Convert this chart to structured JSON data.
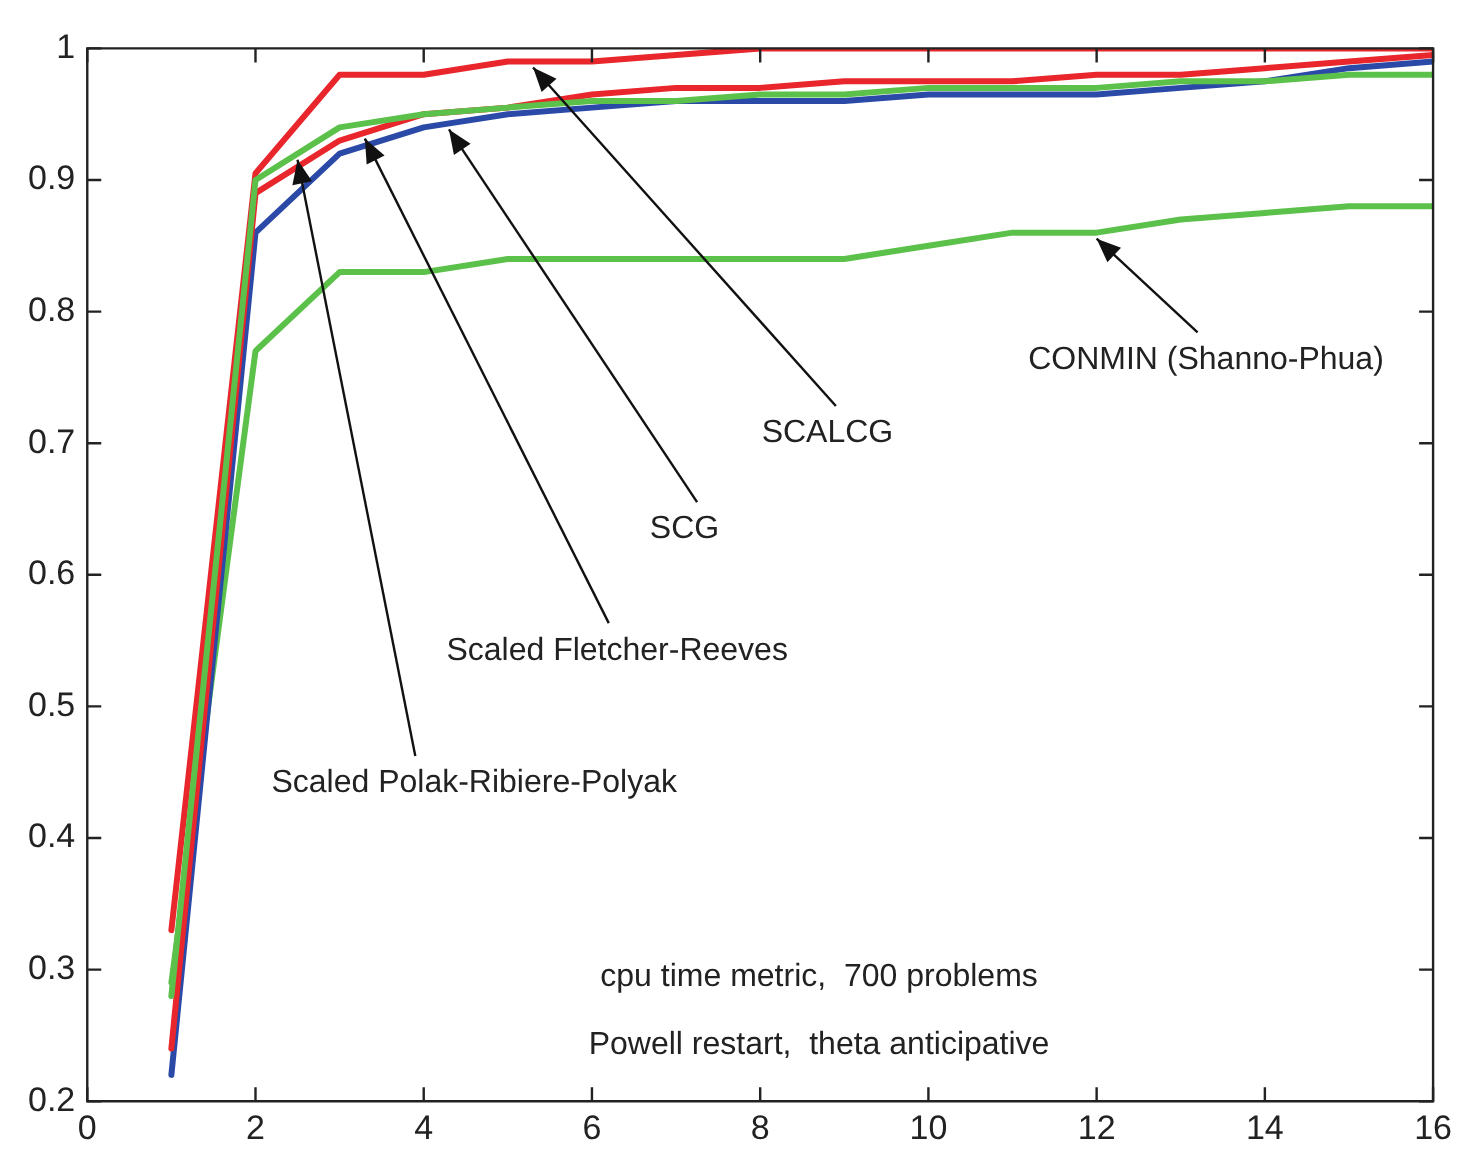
{
  "chart_data": {
    "type": "line",
    "x": [
      1,
      2,
      3,
      4,
      5,
      6,
      7,
      8,
      9,
      10,
      11,
      12,
      13,
      14,
      15,
      16
    ],
    "series": [
      {
        "color": "#5cc14a",
        "values": [
          0.28,
          0.9,
          0.94,
          0.95,
          0.955,
          0.96,
          0.96,
          0.965,
          0.965,
          0.97,
          0.97,
          0.97,
          0.975,
          0.975,
          0.98,
          0.98
        ]
      },
      {
        "color": "#e8262b",
        "values": [
          0.24,
          0.89,
          0.93,
          0.95,
          0.955,
          0.965,
          0.97,
          0.97,
          0.975,
          0.975,
          0.975,
          0.98,
          0.98,
          0.985,
          0.99,
          0.995
        ]
      },
      {
        "color": "#2b4aa8",
        "values": [
          0.22,
          0.86,
          0.92,
          0.94,
          0.95,
          0.955,
          0.96,
          0.96,
          0.96,
          0.965,
          0.965,
          0.965,
          0.97,
          0.975,
          0.985,
          0.99
        ]
      },
      {
        "color": "#e8262b",
        "values": [
          0.33,
          0.905,
          0.98,
          0.98,
          0.99,
          0.99,
          0.995,
          1.0,
          1.0,
          1.0,
          1.0,
          1.0,
          1.0,
          1.0,
          1.0,
          1.0
        ]
      },
      {
        "color": "#5cc14a",
        "values": [
          0.29,
          0.77,
          0.83,
          0.83,
          0.84,
          0.84,
          0.84,
          0.84,
          0.84,
          0.85,
          0.86,
          0.86,
          0.87,
          0.875,
          0.88,
          0.88
        ]
      }
    ],
    "xlim": [
      0,
      16
    ],
    "xticks": [
      0,
      2,
      4,
      6,
      8,
      10,
      12,
      14,
      16
    ],
    "ylim": [
      0.2,
      1
    ],
    "yticks": [
      0.2,
      0.3,
      0.4,
      0.5,
      0.6,
      0.7,
      0.8,
      0.9,
      1
    ],
    "grid": false,
    "legend": false,
    "marker": "none",
    "line_style": "solid",
    "annotations": [
      {
        "text": "Scaled Polak-Ribiere-Polyak",
        "x": 2.5,
        "y": 0.92
      },
      {
        "text": "Scaled Fletcher-Reeves",
        "x": 3.3,
        "y": 0.936
      },
      {
        "text": "SCG",
        "x": 4.3,
        "y": 0.943
      },
      {
        "text": "SCALCG",
        "x": 5.3,
        "y": 0.99
      },
      {
        "text": "CONMIN (Shanno-Phua)",
        "x": 12,
        "y": 0.86
      },
      "cpu time metric,  700 problems",
      "Powell restart,  theta anticipative"
    ]
  }
}
